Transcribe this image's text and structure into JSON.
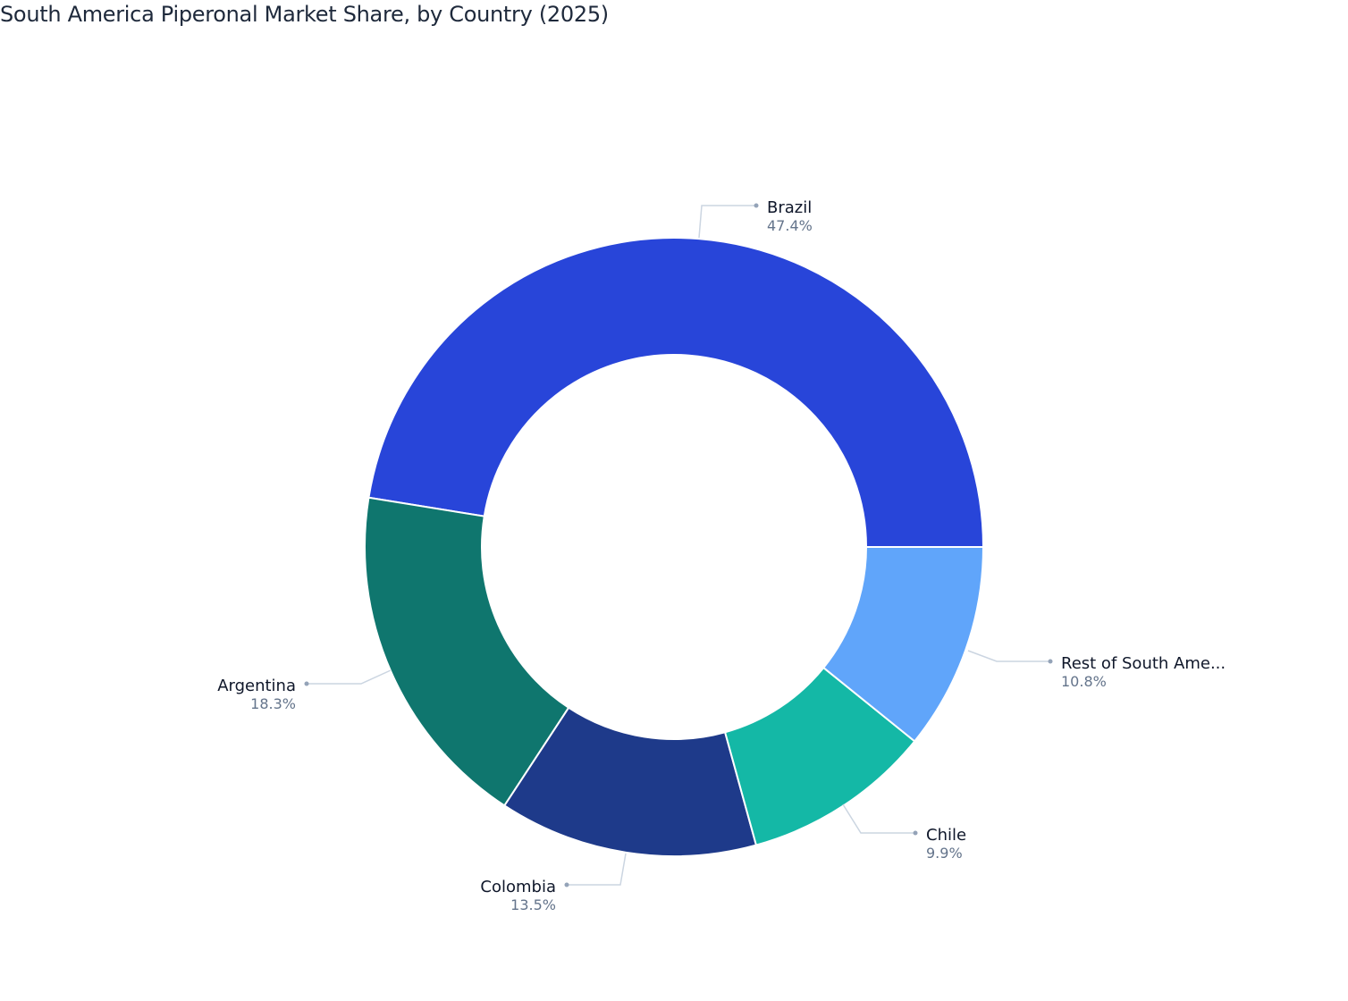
{
  "title": "South America Piperonal Market Share, by Country (2025)",
  "chart_data": {
    "type": "pie",
    "hole": true,
    "title": "South America Piperonal Market Share, by Country (2025)",
    "categories": [
      "Brazil",
      "Argentina",
      "Colombia",
      "Chile",
      "Rest of South America"
    ],
    "display_labels": [
      "Brazil",
      "Argentina",
      "Colombia",
      "Chile",
      "Rest of South Ame..."
    ],
    "values": [
      47.4,
      18.3,
      13.5,
      9.9,
      10.8
    ],
    "value_labels": [
      "47.4%",
      "18.3%",
      "13.5%",
      "9.9%",
      "10.8%"
    ],
    "colors": [
      "#2845d9",
      "#0f766e",
      "#1e3a8a",
      "#14b8a6",
      "#60a5fa"
    ],
    "unit": "%",
    "legend": "none (outside labels with leader lines)"
  },
  "labels": {
    "brazil": {
      "name": "Brazil",
      "value": "47.4%"
    },
    "argentina": {
      "name": "Argentina",
      "value": "18.3%"
    },
    "colombia": {
      "name": "Colombia",
      "value": "13.5%"
    },
    "chile": {
      "name": "Chile",
      "value": "9.9%"
    },
    "rest": {
      "name": "Rest of South Ame...",
      "value": "10.8%"
    }
  }
}
